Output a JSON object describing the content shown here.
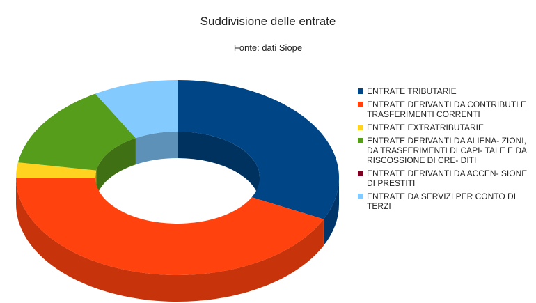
{
  "colors": {
    "entrate_tributarie": "#004586",
    "contributi_trasferimenti": "#ff420e",
    "extratributarie": "#ffd320",
    "alienazioni": "#579d1c",
    "accensione_prestiti": "#7e0021",
    "servizi_conto_terzi": "#83caff"
  },
  "chart_data": {
    "type": "pie",
    "title": "Suddivisione delle entrate",
    "subtitle": "Fonte: dati Siope",
    "style": "3d-donut",
    "legend_position": "right",
    "categories": [
      "ENTRATE TRIBUTARIE",
      "ENTRATE DERIVANTI DA CONTRIBUTI E TRASFERIMENTI CORRENTI",
      "ENTRATE EXTRATRIBUTARIE",
      "ENTRATE DERIVANTI DA ALIENA- ZIONI, DA TRASFERIMENTI DI CAPI- TALE E DA RISCOSSIONE DI CRE- DITI",
      "ENTRATE DERIVANTI DA ACCEN- SIONE DI PRESTITI",
      "ENTRATE DA SERVIZI PER CONTO DI TERZI"
    ],
    "values": [
      32,
      43,
      2.5,
      14,
      0,
      8.5
    ],
    "slice_colors": [
      "#004586",
      "#ff420e",
      "#ffd320",
      "#579d1c",
      "#7e0021",
      "#83caff"
    ]
  }
}
